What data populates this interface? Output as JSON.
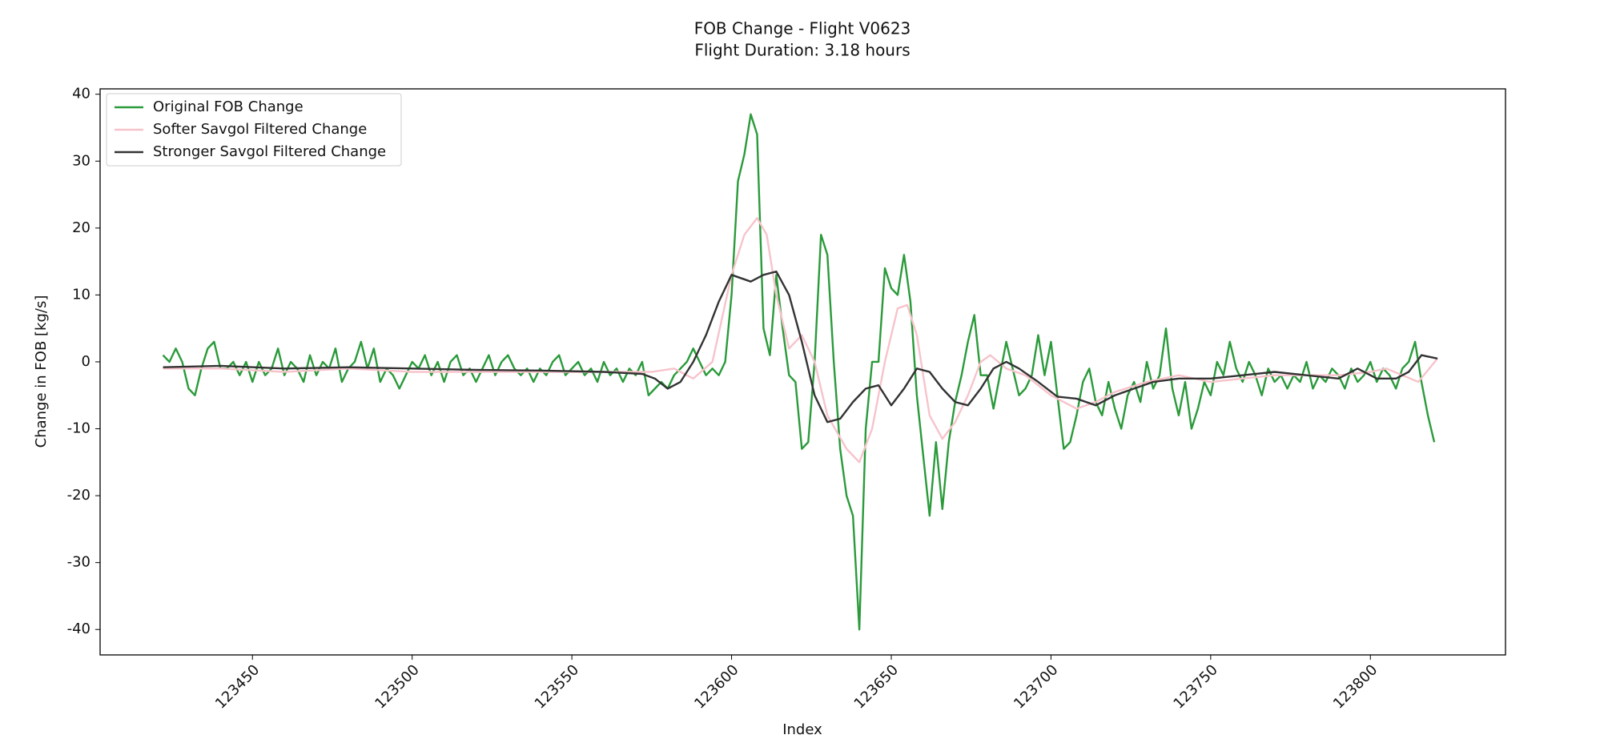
{
  "chart_data": {
    "type": "line",
    "title": "FOB Change - Flight V0623",
    "subtitle": "Flight Duration: 3.18 hours",
    "x_label": "Index",
    "y_label": "Change in FOB [kg/s]",
    "xlim": [
      123402.3,
      123842.3
    ],
    "ylim": [
      -43.8,
      40.8
    ],
    "xticks": [
      123450,
      123500,
      123550,
      123600,
      123650,
      123700,
      123750,
      123800
    ],
    "yticks": [
      -40,
      -30,
      -20,
      -10,
      0,
      10,
      20,
      30,
      40
    ],
    "grid": false,
    "legend": "upper left",
    "x": [
      123422,
      123424,
      123426,
      123428,
      123430,
      123432,
      123434,
      123436,
      123438,
      123440,
      123442,
      123444,
      123446,
      123448,
      123450,
      123452,
      123454,
      123456,
      123458,
      123460,
      123462,
      123464,
      123466,
      123468,
      123470,
      123472,
      123474,
      123476,
      123478,
      123480,
      123482,
      123484,
      123486,
      123488,
      123490,
      123492,
      123494,
      123496,
      123498,
      123500,
      123502,
      123504,
      123506,
      123508,
      123510,
      123512,
      123514,
      123516,
      123518,
      123520,
      123522,
      123524,
      123526,
      123528,
      123530,
      123532,
      123534,
      123536,
      123538,
      123540,
      123542,
      123544,
      123546,
      123548,
      123550,
      123552,
      123554,
      123556,
      123558,
      123560,
      123562,
      123564,
      123566,
      123568,
      123570,
      123572,
      123574,
      123576,
      123578,
      123580,
      123582,
      123584,
      123586,
      123588,
      123590,
      123592,
      123594,
      123596,
      123598,
      123600,
      123602,
      123604,
      123606,
      123608,
      123610,
      123612,
      123614,
      123616,
      123618,
      123620,
      123622,
      123624,
      123626,
      123628,
      123630,
      123632,
      123634,
      123636,
      123638,
      123640,
      123642,
      123644,
      123646,
      123648,
      123650,
      123652,
      123654,
      123656,
      123658,
      123660,
      123662,
      123664,
      123666,
      123668,
      123670,
      123672,
      123674,
      123676,
      123678,
      123680,
      123682,
      123684,
      123686,
      123688,
      123690,
      123692,
      123694,
      123696,
      123698,
      123700,
      123702,
      123704,
      123706,
      123708,
      123710,
      123712,
      123714,
      123716,
      123718,
      123720,
      123722,
      123724,
      123726,
      123728,
      123730,
      123732,
      123734,
      123736,
      123738,
      123740,
      123742,
      123744,
      123746,
      123748,
      123750,
      123752,
      123754,
      123756,
      123758,
      123760,
      123762,
      123764,
      123766,
      123768,
      123770,
      123772,
      123774,
      123776,
      123778,
      123780,
      123782,
      123784,
      123786,
      123788,
      123790,
      123792,
      123794,
      123796,
      123798,
      123800,
      123802,
      123804,
      123806,
      123808,
      123810,
      123812,
      123814,
      123816,
      123818,
      123820
    ],
    "series": [
      {
        "name": "Original FOB Change",
        "color": "#2a9a3a",
        "values": [
          1,
          0,
          2,
          0,
          -4,
          -5,
          -1,
          2,
          3,
          -1,
          -1,
          0,
          -2,
          0,
          -3,
          0,
          -2,
          -1,
          2,
          -2,
          0,
          -1,
          -3,
          1,
          -2,
          0,
          -1,
          2,
          -3,
          -1,
          0,
          3,
          -1,
          2,
          -3,
          -1,
          -2,
          -4,
          -2,
          0,
          -1,
          1,
          -2,
          0,
          -3,
          0,
          1,
          -2,
          -1,
          -3,
          -1,
          1,
          -2,
          0,
          1,
          -1,
          -2,
          -1,
          -3,
          -1,
          -2,
          0,
          1,
          -2,
          -1,
          0,
          -2,
          -1,
          -3,
          0,
          -2,
          -1,
          -3,
          -1,
          -2,
          0,
          -5,
          -4,
          -3,
          -4,
          -2,
          -1,
          0,
          2,
          0,
          -2,
          -1,
          -2,
          0,
          10,
          27,
          31,
          37,
          34,
          5,
          1,
          13,
          5,
          -2,
          -3,
          -13,
          -12,
          0,
          19,
          16,
          0,
          -13,
          -20,
          -23,
          -40,
          -10,
          0,
          0,
          14,
          11,
          10,
          16,
          9,
          -5,
          -14,
          -23,
          -12,
          -22,
          -12,
          -6,
          -2,
          3,
          7,
          -2,
          -2,
          -7,
          -2,
          3,
          -1,
          -5,
          -4,
          -2,
          4,
          -2,
          3,
          -5,
          -13,
          -12,
          -8,
          -3,
          -1,
          -6,
          -8,
          -3,
          -7,
          -10,
          -5,
          -3,
          -6,
          0,
          -4,
          -2,
          5,
          -4,
          -8,
          -3,
          -10,
          -7,
          -3,
          -5,
          0,
          -2,
          3,
          -1,
          -3,
          0,
          -2,
          -5,
          -1,
          -3,
          -2,
          -4,
          -2,
          -3,
          0,
          -4,
          -2,
          -3,
          -1,
          -2,
          -4,
          -1,
          -3,
          -2,
          0,
          -3,
          -1,
          -2,
          -4,
          -1,
          0,
          3,
          -3,
          -8,
          -12
        ]
      },
      {
        "name": "Softer Savgol Filtered Change",
        "color": "#f7c3cb",
        "x": [
          123422,
          123440,
          123460,
          123480,
          123500,
          123520,
          123540,
          123560,
          123575,
          123582,
          123588,
          123594,
          123600,
          123604,
          123608,
          123611,
          123614,
          123618,
          123622,
          123626,
          123630,
          123636,
          123640,
          123644,
          123648,
          123652,
          123655,
          123658,
          123662,
          123666,
          123670,
          123674,
          123678,
          123681,
          123686,
          123692,
          123700,
          123708,
          123714,
          123720,
          123730,
          123740,
          123750,
          123760,
          123770,
          123780,
          123790,
          123800,
          123805,
          123810,
          123815,
          123821
        ],
        "values": [
          -1,
          -1,
          -1.5,
          -1,
          -1.5,
          -1.5,
          -1.5,
          -1.5,
          -1.5,
          -1,
          -2.5,
          0,
          13,
          19,
          21.5,
          19,
          10,
          2,
          4,
          0,
          -8,
          -13,
          -15,
          -10,
          0,
          8,
          8.5,
          4,
          -8,
          -11.5,
          -9,
          -5,
          0,
          1,
          -1,
          -2,
          -5,
          -7,
          -6,
          -4.5,
          -3,
          -2,
          -3,
          -2.5,
          -2,
          -2,
          -2,
          -1.5,
          -1,
          -2,
          -3,
          0.5
        ]
      },
      {
        "name": "Stronger Savgol Filtered Change",
        "color": "#333333",
        "x": [
          123422,
          123440,
          123460,
          123480,
          123500,
          123520,
          123540,
          123560,
          123572,
          123576,
          123580,
          123584,
          123588,
          123592,
          123596,
          123600,
          123606,
          123610,
          123614,
          123618,
          123622,
          123626,
          123630,
          123634,
          123638,
          123642,
          123646,
          123650,
          123654,
          123658,
          123662,
          123666,
          123670,
          123674,
          123678,
          123682,
          123686,
          123690,
          123696,
          123702,
          123708,
          123714,
          123720,
          123726,
          123732,
          123740,
          123750,
          123760,
          123770,
          123780,
          123790,
          123796,
          123802,
          123808,
          123812,
          123816,
          123821
        ],
        "values": [
          -0.8,
          -0.6,
          -1,
          -0.8,
          -1,
          -1.2,
          -1.3,
          -1.5,
          -1.8,
          -2.5,
          -4,
          -3,
          0,
          4,
          9,
          13,
          12,
          13,
          13.5,
          10,
          3,
          -5,
          -9,
          -8.5,
          -6,
          -4,
          -3.5,
          -6.5,
          -4,
          -1,
          -1.5,
          -4,
          -6,
          -6.5,
          -4,
          -1,
          0,
          -1,
          -3,
          -5.2,
          -5.5,
          -6.5,
          -5,
          -4,
          -3,
          -2.5,
          -2.5,
          -2,
          -1.5,
          -2,
          -2.5,
          -1,
          -2.5,
          -2.5,
          -1.5,
          1,
          0.5
        ]
      }
    ]
  }
}
